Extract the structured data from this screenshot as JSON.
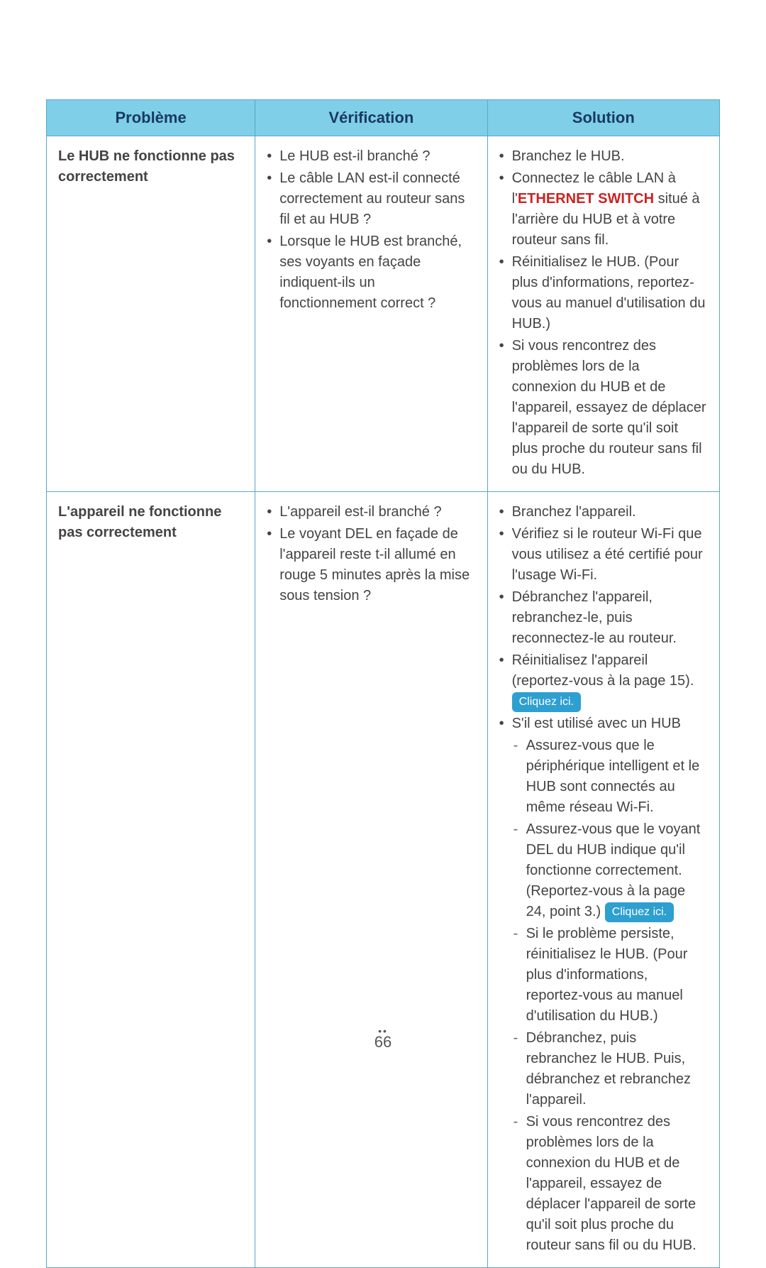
{
  "headers": {
    "probleme": "Problème",
    "verification": "Vérification",
    "solution": "Solution"
  },
  "rows": {
    "r1": {
      "probleme": "Le HUB ne fonctionne pas correctement",
      "verif": [
        "Le HUB est-il branché ?",
        "Le câble LAN est-il connecté correctement au routeur sans fil et au HUB ?",
        "Lorsque le HUB est branché, ses voyants en façade indiquent-ils un fonctionnement correct ?"
      ],
      "sol": {
        "b1": "Branchez le HUB.",
        "b2_pre": "Connectez le câble LAN à l'",
        "b2_hi": "ETHERNET SWITCH",
        "b2_post": " situé à l'arrière du HUB et à votre routeur sans fil.",
        "b3": "Réinitialisez le HUB. (Pour plus d'informations, reportez-vous au manuel d'utilisation du HUB.)",
        "b4": "Si vous rencontrez des problèmes lors de la connexion du HUB et de l'appareil, essayez de déplacer l'appareil de sorte qu'il soit plus proche du routeur sans fil ou du HUB."
      }
    },
    "r2": {
      "probleme": "L'appareil ne fonctionne pas correctement",
      "verif": [
        "L'appareil est-il branché ?",
        "Le voyant DEL en façade de l'appareil reste t-il allumé en rouge 5 minutes après la mise sous tension ?"
      ],
      "sol": {
        "b1": "Branchez l'appareil.",
        "b2": "Vérifiez si le routeur Wi-Fi que vous utilisez a été certifié pour l'usage Wi-Fi.",
        "b3": "Débranchez l'appareil, rebranchez-le, puis reconnectez-le au routeur.",
        "b4_pre": "Réinitialisez l'appareil (reportez-vous à la page 15). ",
        "b5_head": "S'il est utilisé avec un HUB",
        "b5_d1": "Assurez-vous que le périphérique intelligent et le HUB sont connectés au même réseau Wi-Fi.",
        "b5_d2_pre": "Assurez-vous que le voyant DEL du HUB indique qu'il fonctionne correctement. (Reportez-vous à la page 24, point 3.) ",
        "b5_d3": "Si le problème persiste, réinitialisez le HUB. (Pour plus d'informations, reportez-vous au manuel d'utilisation du HUB.)",
        "b5_d4": "Débranchez, puis rebranchez le HUB. Puis, débranchez et rebranchez l'appareil.",
        "b5_d5": "Si vous rencontrez des problèmes lors de la connexion du HUB et de l'appareil, essayez de déplacer l'appareil de sorte qu'il soit plus proche du routeur sans fil ou du HUB."
      }
    }
  },
  "badge": "Cliquez ici.",
  "page_number": "66",
  "colors": {
    "header_bg": "#7fcfe8",
    "border": "#5aa7c2",
    "badge_bg": "#2d9fd0",
    "hilite": "#c22"
  }
}
